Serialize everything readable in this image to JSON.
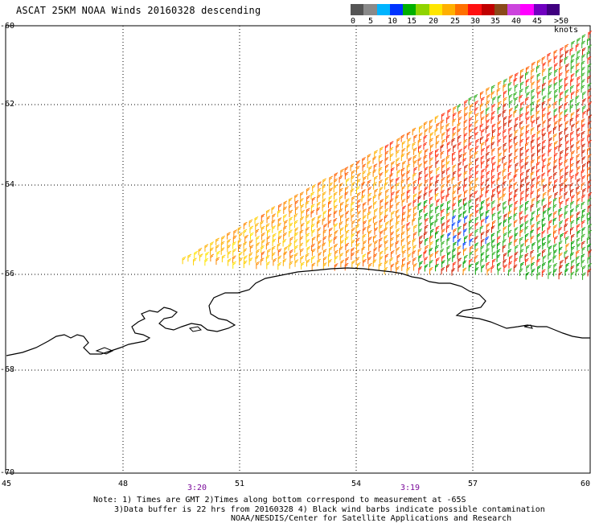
{
  "title": "ASCAT 25KM NOAA Winds 20160328 descending",
  "legend": {
    "colors": [
      "#555555",
      "#8a8a8a",
      "#00b4ff",
      "#0033ff",
      "#00b000",
      "#8fd400",
      "#ffe600",
      "#ffb000",
      "#ff7000",
      "#ff1010",
      "#c00000",
      "#8a4a1a",
      "#cc44dd",
      "#ff00ff",
      "#7000c0",
      "#400080"
    ],
    "labels": [
      "0",
      "5",
      "10",
      "15",
      "20",
      "25",
      "30",
      "35",
      "40",
      "45"
    ],
    "unit": ">50 knots"
  },
  "axes": {
    "y_labels": [
      "-60",
      "-62",
      "-64",
      "-66",
      "-68",
      "-70"
    ],
    "x_labels": [
      "45",
      "48",
      "51",
      "54",
      "57",
      "60"
    ]
  },
  "times": [
    "3:20",
    "3:19"
  ],
  "notes": [
    "Note: 1) Times are GMT 2)Times along bottom correspond to measurement at -65S",
    "3)Data buffer is 22 hrs from 20160328 4) Black wind barbs indicate possible contamination",
    "NOAA/NESDIS/Center for Satellite Applications and Research"
  ]
}
